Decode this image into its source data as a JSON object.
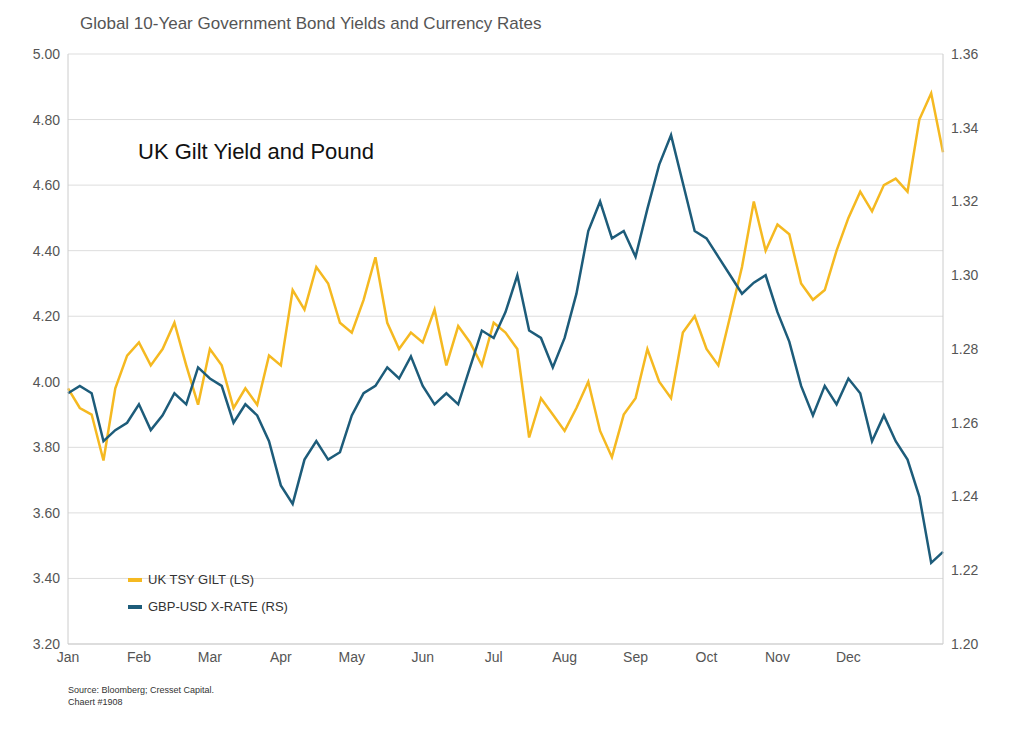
{
  "chart_data": {
    "type": "line",
    "title": "Global 10-Year Government Bond Yields and Currency Rates",
    "annotation": "UK Gilt Yield and Pound",
    "notes": [
      "Source: Bloomberg; Cresset Capital.",
      "Chaert #1908"
    ],
    "categories": [
      "Jan",
      null,
      null,
      null,
      null,
      null,
      "Feb",
      null,
      null,
      null,
      null,
      null,
      "Mar",
      null,
      null,
      null,
      null,
      null,
      "Apr",
      null,
      null,
      null,
      null,
      null,
      "May",
      null,
      null,
      null,
      null,
      null,
      "Jun",
      null,
      null,
      null,
      null,
      null,
      "Jul",
      null,
      null,
      null,
      null,
      null,
      "Aug",
      null,
      null,
      null,
      null,
      null,
      "Sep",
      null,
      null,
      null,
      null,
      null,
      "Oct",
      null,
      null,
      null,
      null,
      null,
      "Nov",
      null,
      null,
      null,
      null,
      null,
      "Dec",
      null,
      null,
      null,
      null,
      null,
      null,
      null,
      null
    ],
    "series": [
      {
        "name": "UK TSY GILT (LS)",
        "color": "#F5B921",
        "values": [
          3.98,
          3.92,
          3.9,
          3.76,
          3.98,
          4.08,
          4.12,
          4.05,
          4.1,
          4.18,
          4.05,
          3.93,
          4.1,
          4.05,
          3.92,
          3.98,
          3.93,
          4.08,
          4.05,
          4.28,
          4.22,
          4.35,
          4.3,
          4.18,
          4.15,
          4.25,
          4.38,
          4.18,
          4.1,
          4.15,
          4.12,
          4.22,
          4.05,
          4.17,
          4.12,
          4.05,
          4.18,
          4.15,
          4.1,
          3.83,
          3.95,
          3.9,
          3.85,
          3.92,
          4.0,
          3.85,
          3.77,
          3.9,
          3.95,
          4.1,
          4.0,
          3.95,
          4.15,
          4.2,
          4.1,
          4.05,
          4.2,
          4.35,
          4.55,
          4.4,
          4.48,
          4.45,
          4.3,
          4.25,
          4.28,
          4.4,
          4.5,
          4.58,
          4.52,
          4.6,
          4.62,
          4.58,
          4.8,
          4.88,
          4.7
        ]
      },
      {
        "name": "GBP-USD X-RATE (RS)",
        "color": "#1D5C7A",
        "axis": "y2",
        "values": [
          1.268,
          1.27,
          1.268,
          1.255,
          1.258,
          1.26,
          1.265,
          1.258,
          1.262,
          1.268,
          1.265,
          1.275,
          1.272,
          1.27,
          1.26,
          1.265,
          1.262,
          1.255,
          1.243,
          1.238,
          1.25,
          1.255,
          1.25,
          1.252,
          1.262,
          1.268,
          1.27,
          1.275,
          1.272,
          1.278,
          1.27,
          1.265,
          1.268,
          1.265,
          1.275,
          1.285,
          1.283,
          1.29,
          1.3,
          1.285,
          1.283,
          1.275,
          1.283,
          1.295,
          1.312,
          1.32,
          1.31,
          1.312,
          1.305,
          1.318,
          1.33,
          1.338,
          1.325,
          1.312,
          1.31,
          1.305,
          1.3,
          1.295,
          1.298,
          1.3,
          1.29,
          1.282,
          1.27,
          1.262,
          1.27,
          1.265,
          1.272,
          1.268,
          1.255,
          1.262,
          1.255,
          1.25,
          1.24,
          1.222,
          1.225
        ]
      }
    ],
    "ylim": [
      3.2,
      5.0
    ],
    "yticks": [
      {
        "value": 3.2,
        "label": "3.20"
      },
      {
        "value": 3.4,
        "label": "3.40"
      },
      {
        "value": 3.6,
        "label": "3.60"
      },
      {
        "value": 3.8,
        "label": "3.80"
      },
      {
        "value": 4.0,
        "label": "4.00"
      },
      {
        "value": 4.2,
        "label": "4.20"
      },
      {
        "value": 4.4,
        "label": "4.40"
      },
      {
        "value": 4.6,
        "label": "4.60"
      },
      {
        "value": 4.8,
        "label": "4.80"
      },
      {
        "value": 5.0,
        "label": "5.00"
      }
    ],
    "y2lim": [
      1.2,
      1.36
    ],
    "y2ticks": [
      {
        "value": 1.2,
        "label": "1.20"
      },
      1.22,
      1.24,
      1.26,
      1.28,
      {
        "value": 1.3,
        "label": "1.30"
      },
      1.32,
      1.34,
      1.36
    ],
    "grid": true,
    "legend": "lower left"
  }
}
